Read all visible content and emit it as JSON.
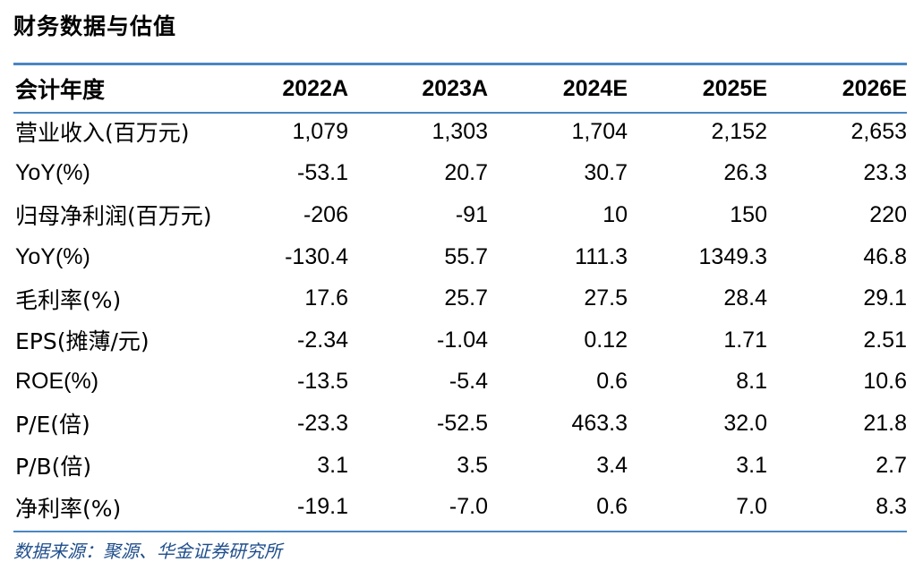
{
  "title": "财务数据与估值",
  "header": {
    "label": "会计年度",
    "years": [
      "2022A",
      "2023A",
      "2024E",
      "2025E",
      "2026E"
    ]
  },
  "rows": [
    {
      "label": "营业收入(百万元)",
      "values": [
        "1,079",
        "1,303",
        "1,704",
        "2,152",
        "2,653"
      ]
    },
    {
      "label": "YoY(%)",
      "values": [
        "-53.1",
        "20.7",
        "30.7",
        "26.3",
        "23.3"
      ]
    },
    {
      "label": "归母净利润(百万元)",
      "values": [
        "-206",
        "-91",
        "10",
        "150",
        "220"
      ]
    },
    {
      "label": "YoY(%)",
      "values": [
        "-130.4",
        "55.7",
        "111.3",
        "1349.3",
        "46.8"
      ]
    },
    {
      "label": "毛利率(%)",
      "values": [
        "17.6",
        "25.7",
        "27.5",
        "28.4",
        "29.1"
      ]
    },
    {
      "label": "EPS(摊薄/元)",
      "values": [
        "-2.34",
        "-1.04",
        "0.12",
        "1.71",
        "2.51"
      ]
    },
    {
      "label": "ROE(%)",
      "values": [
        "-13.5",
        "-5.4",
        "0.6",
        "8.1",
        "10.6"
      ]
    },
    {
      "label": "P/E(倍)",
      "values": [
        "-23.3",
        "-52.5",
        "463.3",
        "32.0",
        "21.8"
      ]
    },
    {
      "label": "P/B(倍)",
      "values": [
        "3.1",
        "3.5",
        "3.4",
        "3.1",
        "2.7"
      ]
    },
    {
      "label": "净利率(%)",
      "values": [
        "-19.1",
        "-7.0",
        "0.6",
        "7.0",
        "8.3"
      ]
    }
  ],
  "source": "数据来源：聚源、华金证券研究所",
  "colors": {
    "rule": "#4a86c3",
    "source_text": "#1f4e8c"
  }
}
